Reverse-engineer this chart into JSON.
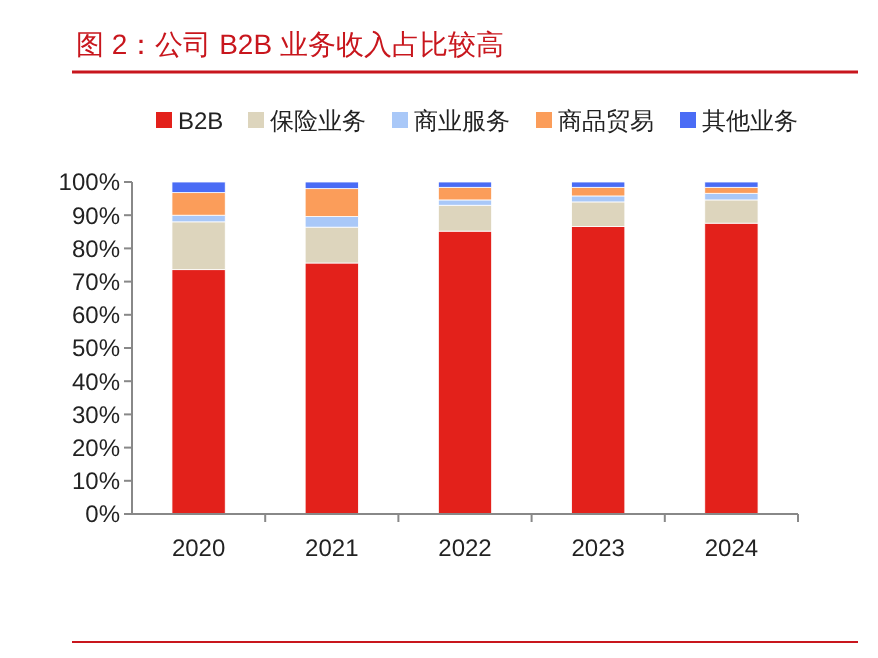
{
  "chart_data": {
    "type": "bar",
    "stacked": true,
    "title": "图 2：公司 B2B 业务收入占比较高",
    "categories": [
      "2020",
      "2021",
      "2022",
      "2023",
      "2024"
    ],
    "series": [
      {
        "name": "B2B",
        "color": "#e3211b",
        "values": [
          73.6,
          75.6,
          85.2,
          86.6,
          87.6
        ]
      },
      {
        "name": "保险业务",
        "color": "#ddd5bd",
        "values": [
          14.4,
          10.8,
          7.8,
          7.4,
          7.0
        ]
      },
      {
        "name": "商业服务",
        "color": "#a9c8f8",
        "values": [
          2.0,
          3.2,
          1.6,
          1.8,
          2.0
        ]
      },
      {
        "name": "商品贸易",
        "color": "#fb9d5a",
        "values": [
          6.8,
          8.4,
          3.8,
          2.6,
          1.8
        ]
      },
      {
        "name": "其他业务",
        "color": "#4a6cf5",
        "values": [
          3.2,
          2.0,
          1.6,
          1.6,
          1.6
        ]
      }
    ],
    "ylim": [
      0,
      100
    ],
    "yticks": [
      {
        "value": 0,
        "label": "0%"
      },
      {
        "value": 10,
        "label": "10%"
      },
      {
        "value": 20,
        "label": "20%"
      },
      {
        "value": 30,
        "label": "30%"
      },
      {
        "value": 40,
        "label": "40%"
      },
      {
        "value": 50,
        "label": "50%"
      },
      {
        "value": 60,
        "label": "60%"
      },
      {
        "value": 70,
        "label": "70%"
      },
      {
        "value": 80,
        "label": "80%"
      },
      {
        "value": 90,
        "label": "90%"
      },
      {
        "value": 100,
        "label": "100%"
      }
    ],
    "grid": false,
    "legend": "top"
  }
}
